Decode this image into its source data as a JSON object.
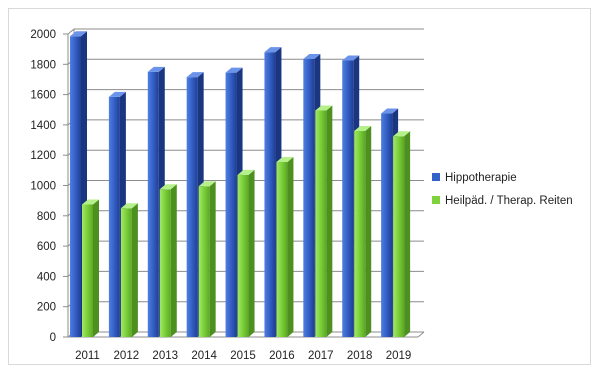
{
  "chart_data": {
    "type": "bar",
    "categories": [
      "2011",
      "2012",
      "2013",
      "2014",
      "2015",
      "2016",
      "2017",
      "2018",
      "2019"
    ],
    "series": [
      {
        "name": "Hippotherapie",
        "color": "#3562c8",
        "values": [
          1985,
          1585,
          1750,
          1715,
          1745,
          1880,
          1835,
          1825,
          1475
        ]
      },
      {
        "name": "Heilpäd. / Therap. Reiten",
        "color": "#7ed23c",
        "values": [
          875,
          850,
          975,
          995,
          1070,
          1155,
          1495,
          1360,
          1325
        ]
      }
    ],
    "yticks": [
      "0",
      "200",
      "400",
      "600",
      "800",
      "1000",
      "1200",
      "1400",
      "1600",
      "1800",
      "2000"
    ],
    "ylim": [
      0,
      2000
    ],
    "grid": true,
    "legend_position": "right",
    "title": "",
    "xlabel": "",
    "ylabel": ""
  }
}
